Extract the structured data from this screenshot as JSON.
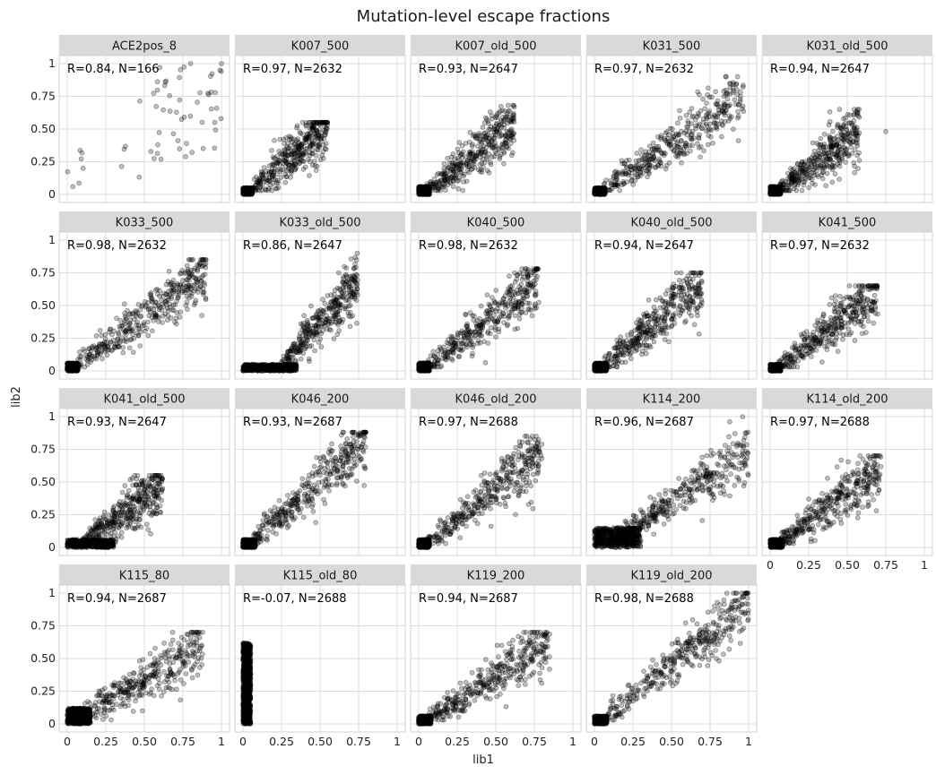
{
  "figure": {
    "title": "Mutation-level escape fractions",
    "xlabel": "lib1",
    "ylabel": "lib2"
  },
  "chart_data": {
    "type": "scatter",
    "title": "Mutation-level escape fractions",
    "xlabel": "lib1",
    "ylabel": "lib2",
    "xlim": [
      0,
      1
    ],
    "ylim": [
      0,
      1
    ],
    "x_ticks": [
      "0",
      "0.25",
      "0.50",
      "0.75",
      "1"
    ],
    "y_ticks": [
      "0",
      "0.25",
      "0.50",
      "0.75",
      "1"
    ],
    "grid": true,
    "facet_layout": {
      "columns": 5,
      "rows": 4
    },
    "point_color": "#000000",
    "point_opacity": 0.25,
    "panels": [
      {
        "name": "ACE2pos_8",
        "annotation": "R=0.84, N=166",
        "R": 0.84,
        "N": 166,
        "x_ticks_shown": false,
        "y_ticks_shown": true,
        "clusters": [
          {
            "n": 22,
            "x": [
              0.0,
              0.12
            ],
            "y": [
              0.02,
              0.38
            ]
          },
          {
            "n": 10,
            "x": [
              0.3,
              0.6
            ],
            "y": [
              0.1,
              0.85
            ]
          },
          {
            "n": 134,
            "x": [
              0.55,
              1.0
            ],
            "y": [
              0.25,
              1.0
            ]
          }
        ],
        "highlight_points": [
          [
            1.0,
            1.0
          ],
          [
            0.99,
            0.95
          ],
          [
            0.8,
            1.0
          ],
          [
            0.6,
            0.97
          ]
        ]
      },
      {
        "name": "K007_500",
        "annotation": "R=0.97, N=2632",
        "R": 0.97,
        "N": 2632,
        "x_ticks_shown": false,
        "y_ticks_shown": false,
        "clusters": [
          {
            "n": 1500,
            "x": [
              0.0,
              0.06
            ],
            "y": [
              0.0,
              0.05
            ]
          },
          {
            "n": 1132,
            "x": [
              0.05,
              0.55
            ],
            "y": [
              0.03,
              0.55
            ],
            "trend": 1.0
          }
        ]
      },
      {
        "name": "K007_old_500",
        "annotation": "R=0.93, N=2647",
        "R": 0.93,
        "N": 2647,
        "x_ticks_shown": false,
        "y_ticks_shown": false,
        "clusters": [
          {
            "n": 1500,
            "x": [
              0.0,
              0.07
            ],
            "y": [
              0.0,
              0.06
            ]
          },
          {
            "n": 1147,
            "x": [
              0.05,
              0.62
            ],
            "y": [
              0.03,
              0.68
            ],
            "trend": 0.9
          }
        ]
      },
      {
        "name": "K031_500",
        "annotation": "R=0.97, N=2632",
        "R": 0.97,
        "N": 2632,
        "x_ticks_shown": false,
        "y_ticks_shown": false,
        "clusters": [
          {
            "n": 1500,
            "x": [
              0.0,
              0.07
            ],
            "y": [
              0.0,
              0.05
            ]
          },
          {
            "n": 1132,
            "x": [
              0.05,
              0.97
            ],
            "y": [
              0.03,
              0.9
            ],
            "trend": 0.78
          }
        ]
      },
      {
        "name": "K031_old_500",
        "annotation": "R=0.94, N=2647",
        "R": 0.94,
        "N": 2647,
        "x_ticks_shown": false,
        "y_ticks_shown": false,
        "clusters": [
          {
            "n": 1500,
            "x": [
              0.0,
              0.07
            ],
            "y": [
              0.0,
              0.06
            ]
          },
          {
            "n": 1147,
            "x": [
              0.05,
              0.58
            ],
            "y": [
              0.03,
              0.65
            ],
            "trend": 0.85
          }
        ],
        "highlight_points": [
          [
            0.75,
            0.48
          ]
        ]
      },
      {
        "name": "K033_500",
        "annotation": "R=0.98, N=2632",
        "R": 0.98,
        "N": 2632,
        "x_ticks_shown": false,
        "y_ticks_shown": true,
        "clusters": [
          {
            "n": 1500,
            "x": [
              0.0,
              0.07
            ],
            "y": [
              0.0,
              0.06
            ]
          },
          {
            "n": 1132,
            "x": [
              0.05,
              0.9
            ],
            "y": [
              0.03,
              0.85
            ],
            "trend": 0.85
          }
        ]
      },
      {
        "name": "K033_old_500",
        "annotation": "R=0.86, N=2647",
        "R": 0.86,
        "N": 2647,
        "x_ticks_shown": false,
        "y_ticks_shown": false,
        "clusters": [
          {
            "n": 1600,
            "x": [
              0.0,
              0.35
            ],
            "y": [
              0.0,
              0.05
            ]
          },
          {
            "n": 1047,
            "x": [
              0.25,
              0.75
            ],
            "y": [
              0.05,
              0.9
            ],
            "trend": 1.3
          }
        ]
      },
      {
        "name": "K040_500",
        "annotation": "R=0.98, N=2632",
        "R": 0.98,
        "N": 2632,
        "x_ticks_shown": false,
        "y_ticks_shown": false,
        "clusters": [
          {
            "n": 1500,
            "x": [
              0.0,
              0.07
            ],
            "y": [
              0.0,
              0.06
            ]
          },
          {
            "n": 1132,
            "x": [
              0.05,
              0.78
            ],
            "y": [
              0.03,
              0.78
            ],
            "trend": 0.9
          }
        ]
      },
      {
        "name": "K040_old_500",
        "annotation": "R=0.94, N=2647",
        "R": 0.94,
        "N": 2647,
        "x_ticks_shown": false,
        "y_ticks_shown": false,
        "clusters": [
          {
            "n": 1500,
            "x": [
              0.0,
              0.08
            ],
            "y": [
              0.0,
              0.06
            ]
          },
          {
            "n": 1147,
            "x": [
              0.05,
              0.7
            ],
            "y": [
              0.03,
              0.75
            ],
            "trend": 1.0
          }
        ]
      },
      {
        "name": "K041_500",
        "annotation": "R=0.97, N=2632",
        "R": 0.97,
        "N": 2632,
        "x_ticks_shown": false,
        "y_ticks_shown": false,
        "clusters": [
          {
            "n": 1500,
            "x": [
              0.0,
              0.07
            ],
            "y": [
              0.0,
              0.05
            ]
          },
          {
            "n": 1132,
            "x": [
              0.05,
              0.7
            ],
            "y": [
              0.03,
              0.65
            ],
            "trend": 0.85
          }
        ]
      },
      {
        "name": "K041_old_500",
        "annotation": "R=0.93, N=2647",
        "R": 0.93,
        "N": 2647,
        "x_ticks_shown": false,
        "y_ticks_shown": true,
        "clusters": [
          {
            "n": 1500,
            "x": [
              0.0,
              0.3
            ],
            "y": [
              0.0,
              0.06
            ]
          },
          {
            "n": 1147,
            "x": [
              0.1,
              0.62
            ],
            "y": [
              0.03,
              0.55
            ],
            "trend": 0.85
          }
        ]
      },
      {
        "name": "K046_200",
        "annotation": "R=0.93, N=2687",
        "R": 0.93,
        "N": 2687,
        "x_ticks_shown": false,
        "y_ticks_shown": false,
        "clusters": [
          {
            "n": 1600,
            "x": [
              0.0,
              0.08
            ],
            "y": [
              0.0,
              0.06
            ]
          },
          {
            "n": 1087,
            "x": [
              0.05,
              0.8
            ],
            "y": [
              0.03,
              0.88
            ],
            "trend": 1.05
          }
        ]
      },
      {
        "name": "K046_old_200",
        "annotation": "R=0.97, N=2688",
        "R": 0.97,
        "N": 2688,
        "x_ticks_shown": false,
        "y_ticks_shown": false,
        "clusters": [
          {
            "n": 1600,
            "x": [
              0.0,
              0.07
            ],
            "y": [
              0.0,
              0.06
            ]
          },
          {
            "n": 1088,
            "x": [
              0.05,
              0.8
            ],
            "y": [
              0.03,
              0.85
            ],
            "trend": 0.95
          }
        ]
      },
      {
        "name": "K114_200",
        "annotation": "R=0.96, N=2687",
        "R": 0.96,
        "N": 2687,
        "x_ticks_shown": false,
        "y_ticks_shown": false,
        "clusters": [
          {
            "n": 1600,
            "x": [
              0.0,
              0.3
            ],
            "y": [
              0.0,
              0.15
            ]
          },
          {
            "n": 1087,
            "x": [
              0.1,
              1.0
            ],
            "y": [
              0.03,
              1.0
            ],
            "trend": 0.8
          }
        ]
      },
      {
        "name": "K114_old_200",
        "annotation": "R=0.97, N=2688",
        "R": 0.97,
        "N": 2688,
        "x_ticks_shown": true,
        "y_ticks_shown": false,
        "clusters": [
          {
            "n": 1600,
            "x": [
              0.0,
              0.08
            ],
            "y": [
              0.0,
              0.06
            ]
          },
          {
            "n": 1088,
            "x": [
              0.05,
              0.72
            ],
            "y": [
              0.03,
              0.7
            ],
            "trend": 0.85
          }
        ]
      },
      {
        "name": "K115_80",
        "annotation": "R=0.94, N=2687",
        "R": 0.94,
        "N": 2687,
        "x_ticks_shown": true,
        "y_ticks_shown": true,
        "clusters": [
          {
            "n": 1600,
            "x": [
              0.0,
              0.15
            ],
            "y": [
              0.0,
              0.12
            ]
          },
          {
            "n": 1087,
            "x": [
              0.05,
              0.88
            ],
            "y": [
              0.03,
              0.7
            ],
            "trend": 0.7
          }
        ]
      },
      {
        "name": "K115_old_80",
        "annotation": "R=-0.07, N=2688",
        "R": -0.07,
        "N": 2688,
        "x_ticks_shown": true,
        "y_ticks_shown": false,
        "clusters": [
          {
            "n": 2688,
            "x": [
              0.0,
              0.05
            ],
            "y": [
              0.0,
              0.62
            ]
          }
        ]
      },
      {
        "name": "K119_200",
        "annotation": "R=0.94, N=2687",
        "R": 0.94,
        "N": 2687,
        "x_ticks_shown": true,
        "y_ticks_shown": false,
        "clusters": [
          {
            "n": 1600,
            "x": [
              0.0,
              0.08
            ],
            "y": [
              0.0,
              0.06
            ]
          },
          {
            "n": 1087,
            "x": [
              0.05,
              0.85
            ],
            "y": [
              0.03,
              0.7
            ],
            "trend": 0.75
          }
        ]
      },
      {
        "name": "K119_old_200",
        "annotation": "R=0.98, N=2688",
        "R": 0.98,
        "N": 2688,
        "x_ticks_shown": true,
        "y_ticks_shown": false,
        "clusters": [
          {
            "n": 1600,
            "x": [
              0.0,
              0.08
            ],
            "y": [
              0.0,
              0.06
            ]
          },
          {
            "n": 1088,
            "x": [
              0.05,
              1.0
            ],
            "y": [
              0.03,
              1.0
            ],
            "trend": 0.95
          }
        ]
      }
    ]
  }
}
